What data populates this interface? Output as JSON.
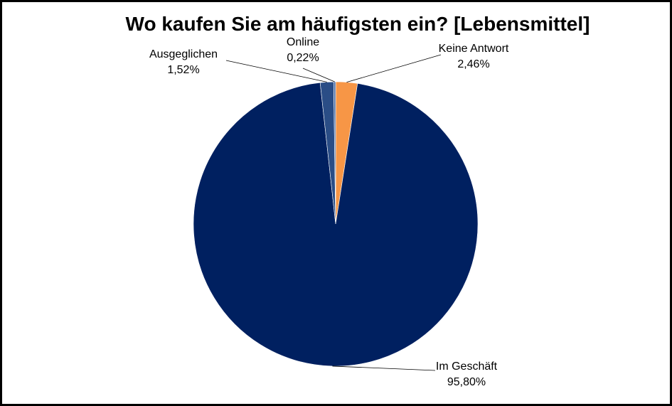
{
  "chart_data": {
    "type": "pie",
    "title": "Wo kaufen Sie am häufigsten ein? [Lebensmittel]",
    "slices": [
      {
        "label": "Keine Antwort",
        "value": 2.46,
        "display": "2,46%",
        "color": "#f79646"
      },
      {
        "label": "Im Geschäft",
        "value": 95.8,
        "display": "95,80%",
        "color": "#002060"
      },
      {
        "label": "Ausgeglichen",
        "value": 1.52,
        "display": "1,52%",
        "color": "#2a4d86"
      },
      {
        "label": "Online",
        "value": 0.22,
        "display": "0,22%",
        "color": "#4a6fa8"
      }
    ]
  }
}
